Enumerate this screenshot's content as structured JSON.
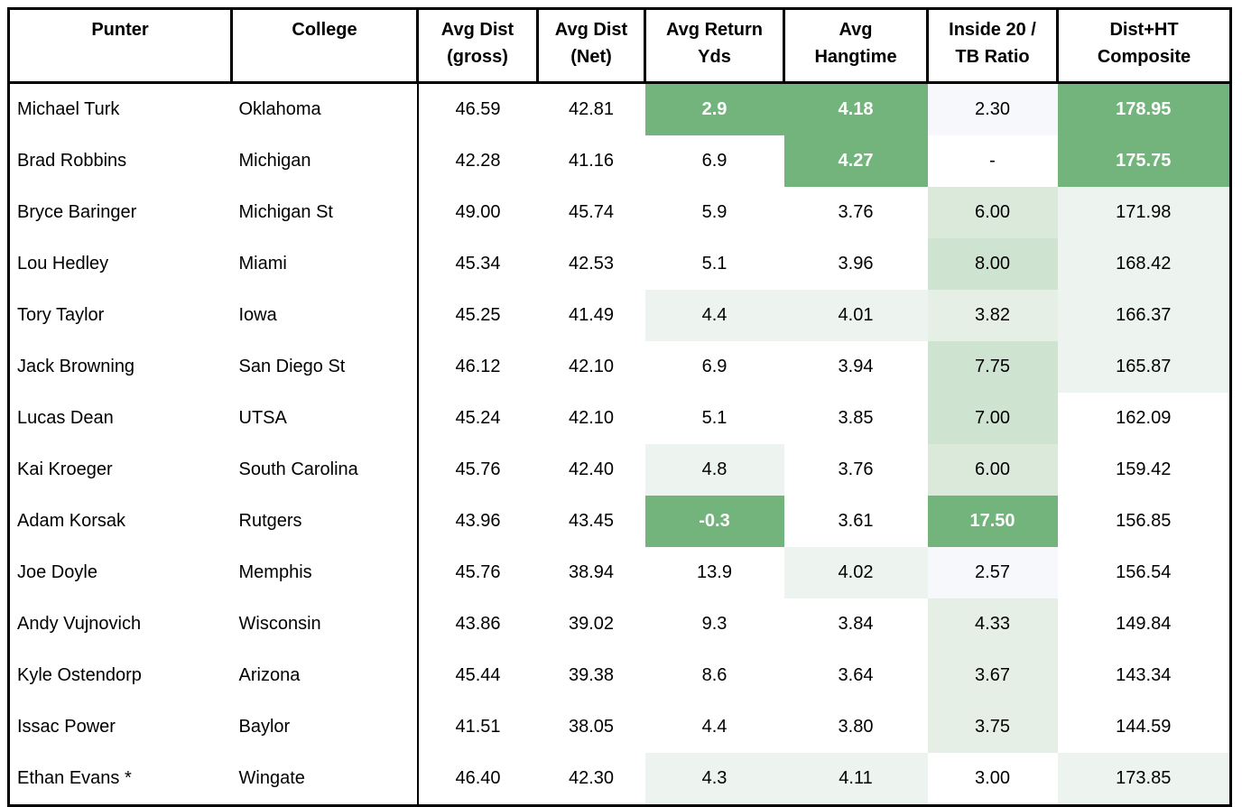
{
  "palette": {
    "strong": "#72b47b",
    "mid": "#cfe3d1",
    "light": "#dbe9da",
    "faint": "#edf3ef",
    "faint_green": "#e5efe6",
    "lavender": "#f7f8fb",
    "strong_text": "#ffffff",
    "body_text": "#000000",
    "grid_border": "#000000"
  },
  "chart_data": {
    "type": "table",
    "columns": [
      "Punter",
      "College",
      "Avg Dist (gross)",
      "Avg Dist (Net)",
      "Avg Return Yds",
      "Avg Hangtime",
      "Inside 20 / TB Ratio",
      "Dist+HT Composite"
    ],
    "column_ids": [
      "punter",
      "college",
      "avg-dist-gross",
      "avg-dist-net",
      "avg-return-yds",
      "avg-hangtime",
      "inside-20-tb-ratio",
      "dist-ht-composite"
    ],
    "header_lines": [
      [
        "Punter"
      ],
      [
        "College"
      ],
      [
        "Avg Dist",
        "(gross)"
      ],
      [
        "Avg Dist",
        "(Net)"
      ],
      [
        "Avg Return",
        "Yds"
      ],
      [
        "Avg",
        "Hangtime"
      ],
      [
        "Inside 20 /",
        "TB Ratio"
      ],
      [
        "Dist+HT",
        "Composite"
      ]
    ],
    "rows": [
      [
        "Michael Turk",
        "Oklahoma",
        "46.59",
        "42.81",
        "2.9",
        "4.18",
        "2.30",
        "178.95"
      ],
      [
        "Brad Robbins",
        "Michigan",
        "42.28",
        "41.16",
        "6.9",
        "4.27",
        "-",
        "175.75"
      ],
      [
        "Bryce Baringer",
        "Michigan St",
        "49.00",
        "45.74",
        "5.9",
        "3.76",
        "6.00",
        "171.98"
      ],
      [
        "Lou Hedley",
        "Miami",
        "45.34",
        "42.53",
        "5.1",
        "3.96",
        "8.00",
        "168.42"
      ],
      [
        "Tory Taylor",
        "Iowa",
        "45.25",
        "41.49",
        "4.4",
        "4.01",
        "3.82",
        "166.37"
      ],
      [
        "Jack Browning",
        "San Diego St",
        "46.12",
        "42.10",
        "6.9",
        "3.94",
        "7.75",
        "165.87"
      ],
      [
        "Lucas Dean",
        "UTSA",
        "45.24",
        "42.10",
        "5.1",
        "3.85",
        "7.00",
        "162.09"
      ],
      [
        "Kai Kroeger",
        "South Carolina",
        "45.76",
        "42.40",
        "4.8",
        "3.76",
        "6.00",
        "159.42"
      ],
      [
        "Adam Korsak",
        "Rutgers",
        "43.96",
        "43.45",
        "-0.3",
        "3.61",
        "17.50",
        "156.85"
      ],
      [
        "Joe Doyle",
        "Memphis",
        "45.76",
        "38.94",
        "13.9",
        "4.02",
        "2.57",
        "156.54"
      ],
      [
        "Andy Vujnovich",
        "Wisconsin",
        "43.86",
        "39.02",
        "9.3",
        "3.84",
        "4.33",
        "149.84"
      ],
      [
        "Kyle Ostendorp",
        "Arizona",
        "45.44",
        "39.38",
        "8.6",
        "3.64",
        "3.67",
        "143.34"
      ],
      [
        "Issac Power",
        "Baylor",
        "41.51",
        "38.05",
        "4.4",
        "3.80",
        "3.75",
        "144.59"
      ],
      [
        "Ethan Evans *",
        "Wingate",
        "46.40",
        "42.30",
        "4.3",
        "4.11",
        "3.00",
        "173.85"
      ]
    ],
    "cell_highlight": [
      [
        "",
        "",
        "",
        "",
        "strong",
        "strong",
        "lavender",
        "strong"
      ],
      [
        "",
        "",
        "",
        "",
        "",
        "strong",
        "",
        "strong"
      ],
      [
        "",
        "",
        "",
        "",
        "",
        "",
        "light",
        "faint"
      ],
      [
        "",
        "",
        "",
        "",
        "",
        "",
        "mid",
        "faint"
      ],
      [
        "",
        "",
        "",
        "",
        "faint",
        "faint",
        "faint_green",
        "faint"
      ],
      [
        "",
        "",
        "",
        "",
        "",
        "",
        "mid",
        "faint"
      ],
      [
        "",
        "",
        "",
        "",
        "",
        "",
        "mid",
        ""
      ],
      [
        "",
        "",
        "",
        "",
        "faint",
        "",
        "light",
        ""
      ],
      [
        "",
        "",
        "",
        "",
        "strong",
        "",
        "strong",
        ""
      ],
      [
        "",
        "",
        "",
        "",
        "",
        "faint",
        "lavender",
        ""
      ],
      [
        "",
        "",
        "",
        "",
        "",
        "",
        "faint_green",
        ""
      ],
      [
        "",
        "",
        "",
        "",
        "",
        "",
        "faint_green",
        ""
      ],
      [
        "",
        "",
        "",
        "",
        "",
        "",
        "faint_green",
        ""
      ],
      [
        "",
        "",
        "",
        "",
        "faint",
        "faint",
        "",
        "faint"
      ]
    ],
    "layout_hints": {
      "grid": "outer black border, full grid in header row, single interior vertical rule in body before Avg Dist (gross)",
      "highlight_meaning": "green conditional-formatting scale; strong green cells use bold white text"
    }
  }
}
